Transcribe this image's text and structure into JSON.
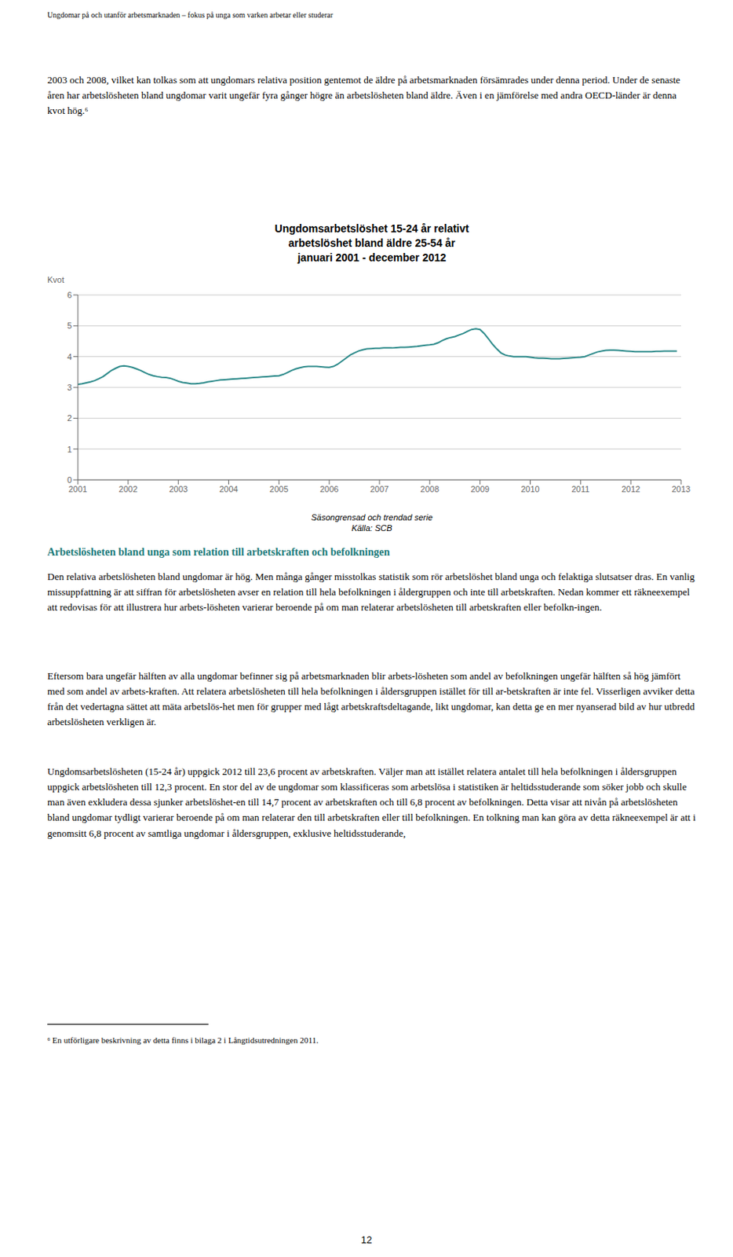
{
  "chart_data": {
    "type": "line",
    "title": [
      "Ungdomsarbetslöshet 15-24 år relativt",
      "arbetslöshet bland äldre 25-54 år",
      "januari 2001 - december 2012"
    ],
    "ylabel": "Kvot",
    "notes": [
      "Säsongrensad och trendad serie",
      "Källa: SCB"
    ],
    "color": "#2E8B8B",
    "grid": true,
    "xlim": [
      2001,
      2013
    ],
    "xticks": [
      2001,
      2002,
      2003,
      2004,
      2005,
      2006,
      2007,
      2008,
      2009,
      2010,
      2011,
      2012,
      2013
    ],
    "ylim": [
      0,
      6
    ],
    "yticks": [
      0,
      1,
      2,
      3,
      4,
      5,
      6
    ],
    "x": [
      2001.0,
      2001.083,
      2001.167,
      2001.25,
      2001.333,
      2001.417,
      2001.5,
      2001.583,
      2001.667,
      2001.75,
      2001.833,
      2001.917,
      2002.0,
      2002.083,
      2002.167,
      2002.25,
      2002.333,
      2002.417,
      2002.5,
      2002.583,
      2002.667,
      2002.75,
      2002.833,
      2002.917,
      2003.0,
      2003.083,
      2003.167,
      2003.25,
      2003.333,
      2003.417,
      2003.5,
      2003.583,
      2003.667,
      2003.75,
      2003.833,
      2003.917,
      2004.0,
      2004.083,
      2004.167,
      2004.25,
      2004.333,
      2004.417,
      2004.5,
      2004.583,
      2004.667,
      2004.75,
      2004.833,
      2004.917,
      2005.0,
      2005.083,
      2005.167,
      2005.25,
      2005.333,
      2005.417,
      2005.5,
      2005.583,
      2005.667,
      2005.75,
      2005.833,
      2005.917,
      2006.0,
      2006.083,
      2006.167,
      2006.25,
      2006.333,
      2006.417,
      2006.5,
      2006.583,
      2006.667,
      2006.75,
      2006.833,
      2006.917,
      2007.0,
      2007.083,
      2007.167,
      2007.25,
      2007.333,
      2007.417,
      2007.5,
      2007.583,
      2007.667,
      2007.75,
      2007.833,
      2007.917,
      2008.0,
      2008.083,
      2008.167,
      2008.25,
      2008.333,
      2008.417,
      2008.5,
      2008.583,
      2008.667,
      2008.75,
      2008.833,
      2008.917,
      2009.0,
      2009.083,
      2009.167,
      2009.25,
      2009.333,
      2009.417,
      2009.5,
      2009.583,
      2009.667,
      2009.75,
      2009.833,
      2009.917,
      2010.0,
      2010.083,
      2010.167,
      2010.25,
      2010.333,
      2010.417,
      2010.5,
      2010.583,
      2010.667,
      2010.75,
      2010.833,
      2010.917,
      2011.0,
      2011.083,
      2011.167,
      2011.25,
      2011.333,
      2011.417,
      2011.5,
      2011.583,
      2011.667,
      2011.75,
      2011.833,
      2011.917,
      2012.0,
      2012.083,
      2012.167,
      2012.25,
      2012.333,
      2012.417,
      2012.5,
      2012.583,
      2012.667,
      2012.75,
      2012.833,
      2012.917
    ],
    "values": [
      3.1,
      3.12,
      3.15,
      3.18,
      3.22,
      3.28,
      3.35,
      3.45,
      3.55,
      3.62,
      3.68,
      3.7,
      3.68,
      3.65,
      3.6,
      3.55,
      3.48,
      3.42,
      3.38,
      3.35,
      3.33,
      3.32,
      3.3,
      3.25,
      3.2,
      3.16,
      3.14,
      3.12,
      3.12,
      3.13,
      3.15,
      3.18,
      3.2,
      3.22,
      3.24,
      3.25,
      3.26,
      3.27,
      3.28,
      3.29,
      3.3,
      3.31,
      3.32,
      3.33,
      3.34,
      3.35,
      3.36,
      3.37,
      3.38,
      3.42,
      3.48,
      3.55,
      3.6,
      3.64,
      3.67,
      3.68,
      3.68,
      3.68,
      3.67,
      3.66,
      3.65,
      3.68,
      3.75,
      3.85,
      3.95,
      4.05,
      4.12,
      4.18,
      4.22,
      4.25,
      4.26,
      4.27,
      4.27,
      4.28,
      4.28,
      4.28,
      4.29,
      4.3,
      4.3,
      4.31,
      4.32,
      4.33,
      4.35,
      4.37,
      4.38,
      4.4,
      4.45,
      4.52,
      4.58,
      4.62,
      4.65,
      4.7,
      4.75,
      4.82,
      4.88,
      4.9,
      4.88,
      4.75,
      4.58,
      4.4,
      4.25,
      4.12,
      4.05,
      4.02,
      4.0,
      4.0,
      4.0,
      4.0,
      3.98,
      3.96,
      3.95,
      3.95,
      3.94,
      3.93,
      3.93,
      3.93,
      3.94,
      3.95,
      3.96,
      3.97,
      3.98,
      4.0,
      4.05,
      4.1,
      4.15,
      4.18,
      4.2,
      4.21,
      4.21,
      4.2,
      4.19,
      4.18,
      4.17,
      4.16,
      4.16,
      4.16,
      4.16,
      4.16,
      4.17,
      4.17,
      4.18,
      4.18,
      4.18,
      4.18
    ]
  },
  "texts": {
    "header": "Ungdomar på och utanför arbetsmarknaden – fokus på unga som varken arbetar eller studerar",
    "para1": "2003 och 2008, vilket kan tolkas som att ungdomars relativa position gentemot de äldre på arbetsmarknaden försämrades under denna period. Under de senaste åren har arbetslösheten bland ungdomar varit ungefär fyra gånger högre än arbetslösheten bland äldre. Även i en jämförelse med andra OECD-länder är denna kvot hög.⁶",
    "section_heading": "Arbetslösheten bland unga som relation till arbetskraften och befolkningen",
    "heading_color": "#1B7A7A",
    "para2": "Den relativa arbetslösheten bland ungdomar är hög. Men många gånger misstolkas statistik som rör arbetslöshet bland unga och felaktiga slutsatser dras. En vanlig missuppfattning är att siffran för arbetslösheten avser en relation till hela befolkningen i åldergruppen och inte till arbetskraften. Nedan kommer ett räkneexempel att redovisas för att illustrera hur arbets-lösheten varierar beroende på om man relaterar arbetslösheten till arbetskraften eller befolkn-ingen.",
    "para3": "Eftersom bara ungefär hälften av alla ungdomar befinner sig på arbetsmarknaden blir arbets-lösheten som andel av befolkningen ungefär hälften så hög jämfört med som andel av arbets-kraften. Att relatera arbetslösheten till hela befolkningen i åldersgruppen istället för till ar-betskraften är inte fel. Visserligen avviker detta från det vedertagna sättet att mäta arbetslös-het men för grupper med lågt arbetskraftsdeltagande, likt ungdomar, kan detta ge en mer nyanserad bild av hur utbredd arbetslösheten verkligen är.",
    "para4": "Ungdomsarbetslösheten (15-24 år) uppgick 2012 till 23,6 procent av arbetskraften. Väljer man att istället relatera antalet till hela befolkningen i åldersgruppen uppgick arbetslösheten till 12,3 procent. En stor del av de ungdomar som klassificeras som arbetslösa i statistiken är heltidsstuderande som söker jobb och skulle man även exkludera dessa sjunker arbetslöshet-en till 14,7 procent av arbetskraften och till 6,8 procent av befolkningen. Detta visar att nivån på arbetslösheten bland ungdomar tydligt varierar beroende på om man relaterar den till arbetskraften eller till befolkningen. En tolkning man kan göra av detta räkneexempel är att i genomsitt 6,8 procent av samtliga ungdomar i åldersgruppen, exklusive heltidsstuderande,",
    "footnote": "⁶ En utförligare beskrivning av detta finns i bilaga 2 i Långtidsutredningen 2011.",
    "page_number": "12"
  }
}
